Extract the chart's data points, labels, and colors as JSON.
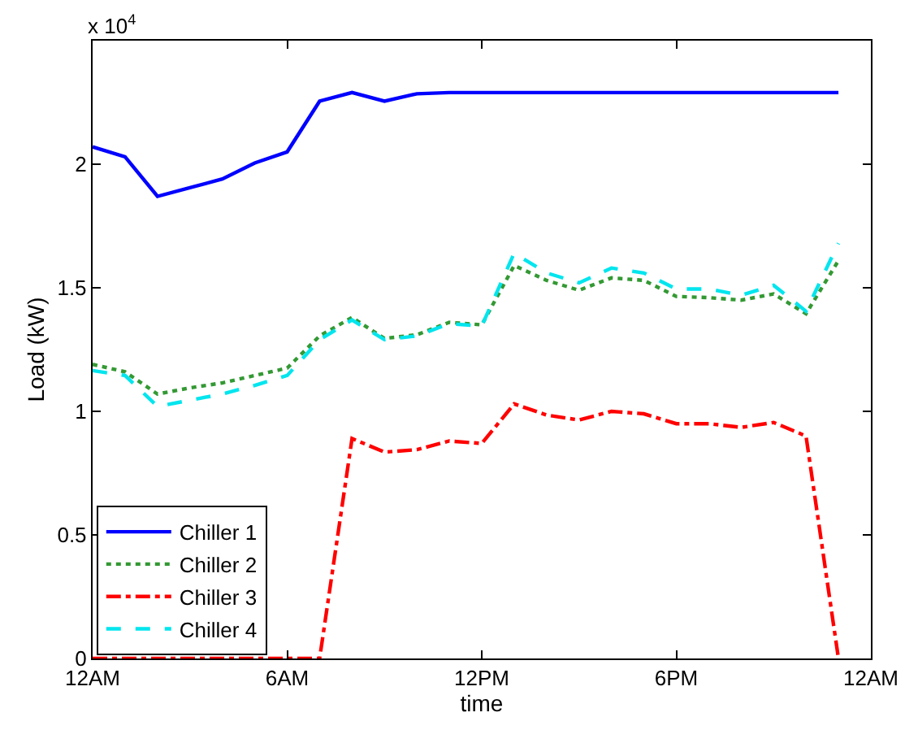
{
  "chart_data": {
    "type": "line",
    "xlabel": "time",
    "ylabel": "Load (kW)",
    "annotations": [
      "x 10$^{4}$"
    ],
    "categories": [
      "12AM",
      null,
      null,
      null,
      null,
      null,
      "6AM",
      null,
      null,
      null,
      null,
      null,
      "12PM",
      null,
      null,
      null,
      null,
      null,
      "6PM",
      null,
      null,
      null,
      null,
      null,
      "12AM"
    ],
    "ylim": [
      0,
      2.5
    ],
    "yticks": [
      0,
      0.5,
      1,
      1.5,
      2
    ],
    "grid": false,
    "legend": "bottom left",
    "marker": "none",
    "series": [
      {
        "name": "Chiller 1",
        "color": "#0000ff",
        "line_style": "solid",
        "values": [
          2.07,
          2.03,
          1.87,
          1.905,
          1.94,
          2.005,
          2.05,
          2.255,
          2.29,
          2.255,
          2.285,
          2.29,
          2.29,
          2.29,
          2.29,
          2.29,
          2.29,
          2.29,
          2.29,
          2.29,
          2.29,
          2.29,
          2.29,
          2.29,
          null
        ]
      },
      {
        "name": "Chiller 2",
        "color": "#339933",
        "line_style": "dotted",
        "values": [
          1.19,
          1.16,
          1.07,
          1.095,
          1.115,
          1.145,
          1.175,
          1.305,
          1.38,
          1.295,
          1.31,
          1.36,
          1.35,
          1.59,
          1.53,
          1.49,
          1.54,
          1.53,
          1.465,
          1.46,
          1.45,
          1.475,
          1.395,
          1.61,
          null
        ]
      },
      {
        "name": "Chiller 3",
        "color": "#ff0000",
        "line_style": "dashdot",
        "values": [
          0,
          0,
          0,
          0,
          0,
          0,
          0,
          0,
          0.89,
          0.835,
          0.845,
          0.88,
          0.87,
          1.03,
          0.985,
          0.965,
          1.0,
          0.99,
          0.95,
          0.95,
          0.935,
          0.955,
          0.9,
          0,
          null
        ]
      },
      {
        "name": "Chiller 4",
        "color": "#00e5ee",
        "line_style": "dashed",
        "values": [
          1.165,
          1.145,
          1.02,
          1.045,
          1.07,
          1.105,
          1.145,
          1.29,
          1.37,
          1.29,
          1.305,
          1.355,
          1.345,
          1.64,
          1.56,
          1.52,
          1.58,
          1.56,
          1.495,
          1.495,
          1.47,
          1.51,
          1.405,
          1.68,
          null
        ]
      }
    ]
  }
}
